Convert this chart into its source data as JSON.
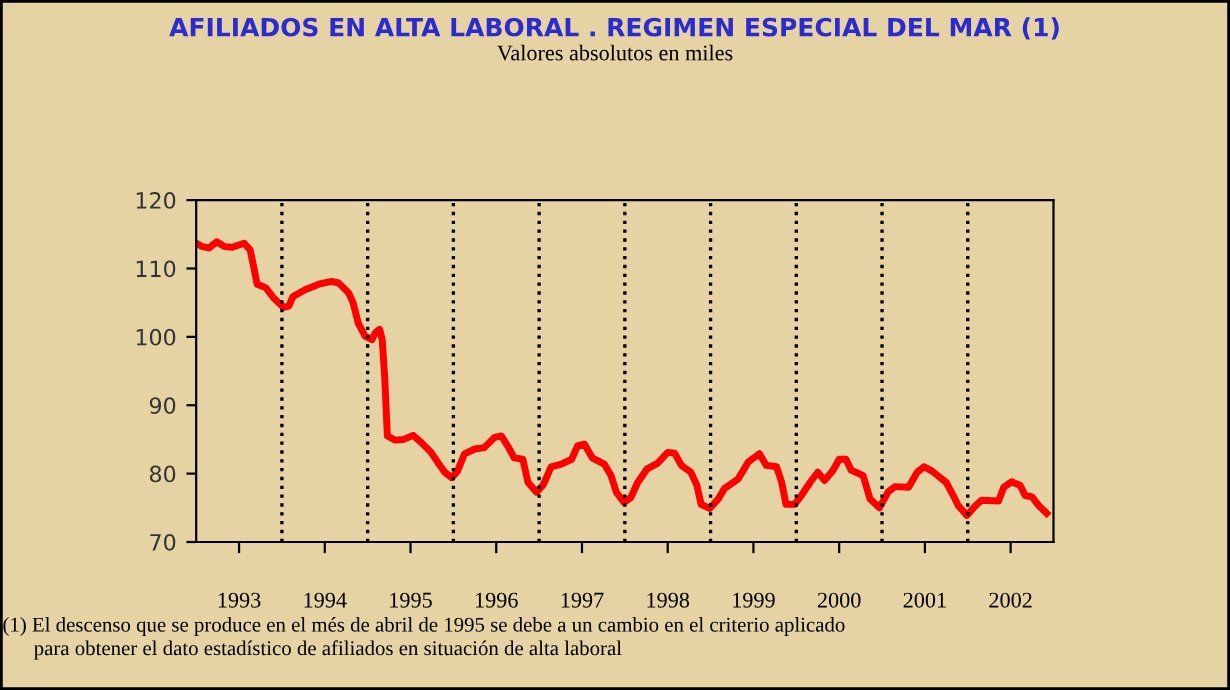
{
  "chart_data": {
    "type": "line",
    "title": "AFILIADOS EN ALTA LABORAL . REGIMEN ESPECIAL DEL MAR (1)",
    "subtitle": "Valores absolutos en miles",
    "annotations": [
      "(1) El descenso que se produce en el més de abril de 1995 se debe a un cambio en el criterio aplicado\n      para obtener el dato estadístico de afiliados en situación de alta laboral"
    ],
    "series": [
      {
        "color": "#ff0000",
        "x": [
          1993.0,
          1993.07,
          1993.15,
          1993.24,
          1993.33,
          1993.42,
          1993.56,
          1993.63,
          1993.67,
          1993.71,
          1993.81,
          1993.91,
          1994.02,
          1994.08,
          1994.13,
          1994.27,
          1994.43,
          1994.58,
          1994.66,
          1994.78,
          1994.83,
          1994.89,
          1994.97,
          1995.05,
          1995.09,
          1995.14,
          1995.17,
          1995.2,
          1995.23,
          1995.32,
          1995.42,
          1995.53,
          1995.63,
          1995.74,
          1995.82,
          1995.9,
          1995.98,
          1996.05,
          1996.13,
          1996.25,
          1996.36,
          1996.48,
          1996.56,
          1996.64,
          1996.71,
          1996.81,
          1996.87,
          1996.97,
          1997.05,
          1997.14,
          1997.26,
          1997.38,
          1997.45,
          1997.53,
          1997.62,
          1997.76,
          1997.84,
          1997.9,
          1997.99,
          1998.07,
          1998.15,
          1998.26,
          1998.38,
          1998.5,
          1998.58,
          1998.66,
          1998.77,
          1998.84,
          1998.89,
          1998.99,
          1999.09,
          1999.16,
          1999.32,
          1999.44,
          1999.57,
          1999.65,
          1999.77,
          1999.83,
          1999.88,
          1999.98,
          2000.06,
          2000.16,
          2000.25,
          2000.33,
          2000.43,
          2000.5,
          2000.58,
          2000.64,
          2000.78,
          2000.86,
          2000.97,
          2001.07,
          2001.15,
          2001.31,
          2001.41,
          2001.49,
          2001.58,
          2001.75,
          2001.83,
          2001.89,
          2001.99,
          2002.09,
          2002.16,
          2002.36,
          2002.42,
          2002.51,
          2002.61,
          2002.67,
          2002.75,
          2002.83,
          2002.92
        ],
        "values": [
          113.7,
          113.2,
          113.0,
          113.9,
          113.2,
          113.1,
          113.7,
          112.7,
          110.3,
          107.7,
          107.2,
          105.6,
          104.3,
          104.5,
          105.9,
          106.9,
          107.7,
          108.1,
          107.9,
          106.4,
          105.0,
          102.0,
          100.1,
          99.6,
          100.6,
          101.1,
          99.6,
          93.8,
          85.5,
          84.9,
          85.0,
          85.6,
          84.5,
          83.1,
          81.6,
          80.2,
          79.4,
          80.4,
          82.9,
          83.6,
          83.8,
          85.3,
          85.5,
          83.9,
          82.3,
          82.1,
          78.7,
          77.3,
          78.4,
          81.0,
          81.4,
          82.1,
          84.1,
          84.3,
          82.3,
          81.4,
          79.7,
          77.3,
          75.8,
          76.5,
          78.7,
          80.7,
          81.5,
          83.1,
          83.0,
          81.2,
          80.2,
          78.3,
          75.5,
          74.9,
          76.3,
          77.8,
          79.2,
          81.7,
          82.9,
          81.2,
          81.0,
          78.7,
          75.5,
          75.5,
          76.8,
          78.7,
          80.2,
          79.0,
          80.5,
          82.1,
          82.1,
          80.5,
          79.7,
          76.3,
          75.0,
          77.3,
          78.1,
          78.0,
          80.2,
          81.0,
          80.4,
          78.7,
          76.8,
          75.3,
          73.9,
          75.3,
          76.1,
          76.0,
          78.0,
          78.8,
          78.3,
          76.8,
          76.6,
          75.3,
          74.2
        ]
      }
    ],
    "xlim": [
      1993,
      2003
    ],
    "xticks": [
      {
        "value": 1993.5,
        "label": "1993"
      },
      {
        "value": 1994.5,
        "label": "1994"
      },
      {
        "value": 1995.5,
        "label": "1995"
      },
      {
        "value": 1996.5,
        "label": "1996"
      },
      {
        "value": 1997.5,
        "label": "1997"
      },
      {
        "value": 1998.5,
        "label": "1998"
      },
      {
        "value": 1999.5,
        "label": "1999"
      },
      {
        "value": 2000.5,
        "label": "2000"
      },
      {
        "value": 2001.5,
        "label": "2001"
      },
      {
        "value": 2002.5,
        "label": "2002"
      }
    ],
    "ylim": [
      70,
      120
    ],
    "yticks": [
      70,
      80,
      90,
      100,
      110,
      120
    ],
    "ref_lines": [
      {
        "axis": "x",
        "value": 1994,
        "line_style": "dotted"
      },
      {
        "axis": "x",
        "value": 1995,
        "line_style": "dotted"
      },
      {
        "axis": "x",
        "value": 1996,
        "line_style": "dotted"
      },
      {
        "axis": "x",
        "value": 1997,
        "line_style": "dotted"
      },
      {
        "axis": "x",
        "value": 1998,
        "line_style": "dotted"
      },
      {
        "axis": "x",
        "value": 1999,
        "line_style": "dotted"
      },
      {
        "axis": "x",
        "value": 2000,
        "line_style": "dotted"
      },
      {
        "axis": "x",
        "value": 2001,
        "line_style": "dotted"
      },
      {
        "axis": "x",
        "value": 2002,
        "line_style": "dotted"
      }
    ],
    "marker": "none",
    "line_style": "solid"
  }
}
